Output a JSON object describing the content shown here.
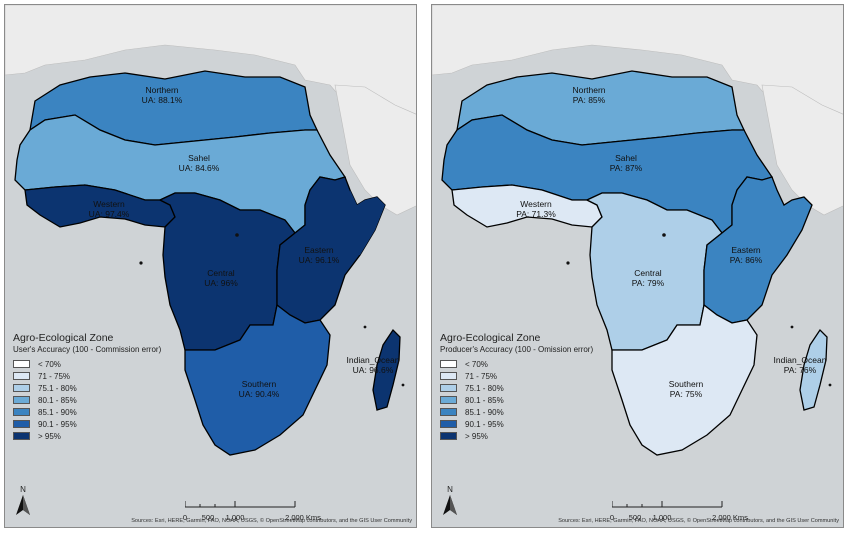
{
  "colors": {
    "sea": "#cfd3d6",
    "land": "#ececec",
    "border": "#000000",
    "classes": [
      "#ffffff",
      "#dde8f4",
      "#aecfe8",
      "#6aaad6",
      "#3b84c1",
      "#1f5da8",
      "#0c3470"
    ]
  },
  "legend_classes": [
    "< 70%",
    "71 - 75%",
    "75.1 - 80%",
    "80.1 - 85%",
    "85.1 - 90%",
    "90.1 - 95%",
    "> 95%"
  ],
  "maps": {
    "left": {
      "legend_title": "Agro-Ecological Zone",
      "legend_subtitle": "User's Accuracy (100 - Commission error)",
      "zones": {
        "northern": {
          "name": "Northern",
          "value": "UA: 88.1%",
          "class": 4
        },
        "sahel": {
          "name": "Sahel",
          "value": "UA: 84.6%",
          "class": 3
        },
        "western": {
          "name": "Western",
          "value": "UA: 97.4%",
          "class": 6
        },
        "central": {
          "name": "Central",
          "value": "UA: 96%",
          "class": 6
        },
        "eastern": {
          "name": "Eastern",
          "value": "UA: 96.1%",
          "class": 6
        },
        "southern": {
          "name": "Southern",
          "value": "UA: 90.4%",
          "class": 5
        },
        "indian_ocean": {
          "name": "Indian_Ocean",
          "value": "UA: 96.6%",
          "class": 6
        }
      }
    },
    "right": {
      "legend_title": "Agro-Ecological Zone",
      "legend_subtitle": "Producer's Accuracy (100 - Omission error)",
      "zones": {
        "northern": {
          "name": "Northern",
          "value": "PA: 85%",
          "class": 3
        },
        "sahel": {
          "name": "Sahel",
          "value": "PA: 87%",
          "class": 4
        },
        "western": {
          "name": "Western",
          "value": "PA: 71.3%",
          "class": 1
        },
        "central": {
          "name": "Central",
          "value": "PA: 79%",
          "class": 2
        },
        "eastern": {
          "name": "Eastern",
          "value": "PA: 86%",
          "class": 4
        },
        "southern": {
          "name": "Southern",
          "value": "PA: 75%",
          "class": 1
        },
        "indian_ocean": {
          "name": "Indian_Ocean",
          "value": "PA: 76%",
          "class": 2
        }
      }
    }
  },
  "north_arrow": "N",
  "scale": {
    "ticks": [
      "0",
      "500",
      "1,000",
      "2,000 Kms"
    ]
  },
  "attribution": "Sources: Esri, HERE, Garmin, FAO, NOAA, USGS, © OpenStreetMap contributors, and the GIS User Community"
}
